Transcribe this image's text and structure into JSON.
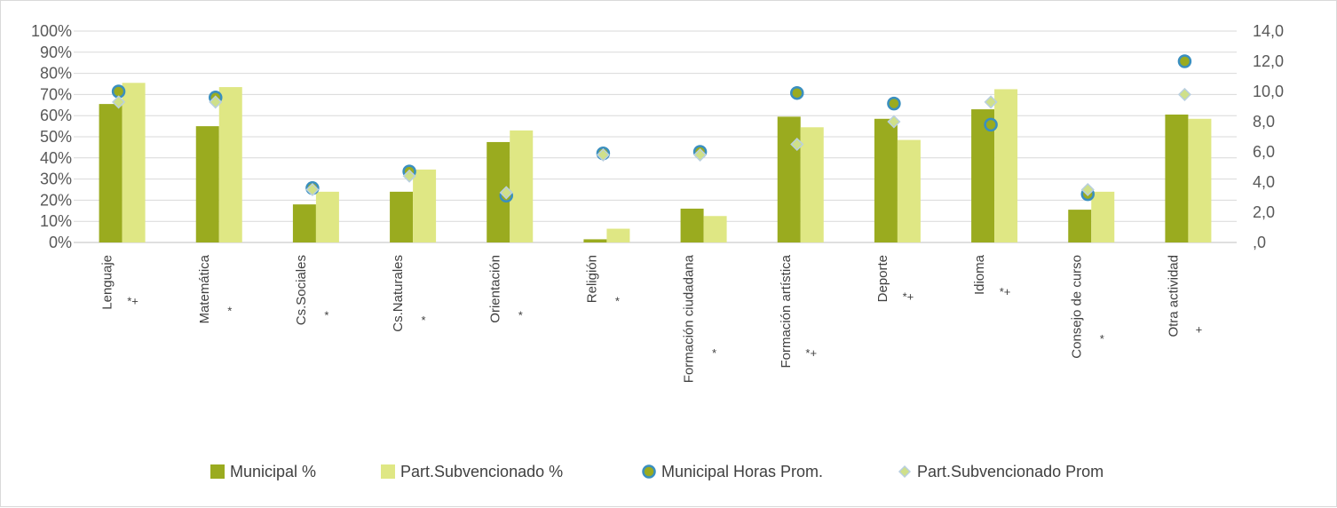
{
  "chart_data": {
    "type": "bar",
    "categories": [
      "Lenguaje",
      "Matemática",
      "Cs.Sociales",
      "Cs.Naturales",
      "Orientación",
      "Religión",
      "Formación ciudadana",
      "Formación artística",
      "Deporte",
      "Idioma",
      "Consejo de curso",
      "Otra actividad"
    ],
    "significance": [
      "*+",
      "*",
      "*",
      "*",
      "*",
      "*",
      "*",
      "*+",
      "*+",
      "*+",
      "*",
      "+"
    ],
    "y_left": {
      "ticks": [
        "0%",
        "10%",
        "20%",
        "30%",
        "40%",
        "50%",
        "60%",
        "70%",
        "80%",
        "90%",
        "100%"
      ],
      "ylim": [
        0,
        100
      ]
    },
    "y_right": {
      "ticks": [
        ",0",
        "2,0",
        "4,0",
        "6,0",
        "8,0",
        "10,0",
        "12,0",
        "14,0"
      ],
      "ylim": [
        0,
        14
      ]
    },
    "series": [
      {
        "name": "Municipal %",
        "kind": "bar",
        "axis": "left",
        "color": "#9aab1f",
        "values": [
          65.5,
          55,
          18,
          24,
          47.5,
          1.5,
          16,
          59.5,
          58.5,
          63,
          15.5,
          60.5
        ]
      },
      {
        "name": "Part.Subvencionado %",
        "kind": "bar",
        "axis": "left",
        "color": "#dfe784",
        "values": [
          75.5,
          73.5,
          24,
          34.5,
          53,
          6.5,
          12.5,
          54.5,
          48.5,
          72.5,
          24,
          58.5
        ]
      },
      {
        "name": "Municipal Horas Prom.",
        "kind": "marker-circle",
        "axis": "right",
        "color": "#9aab1f",
        "edge": "#3a8fbf",
        "values": [
          10.0,
          9.6,
          3.6,
          4.7,
          3.1,
          5.9,
          6.0,
          9.9,
          9.2,
          7.8,
          3.2,
          12.0
        ]
      },
      {
        "name": "Part.Subvencionado Prom",
        "kind": "marker-diamond",
        "axis": "right",
        "color": "#cfe08a",
        "edge": "#b9cfe0",
        "values": [
          9.3,
          9.3,
          3.5,
          4.4,
          3.3,
          5.8,
          5.8,
          6.5,
          8.0,
          9.3,
          3.5,
          9.8
        ]
      }
    ],
    "legend_position": "bottom",
    "grid": true
  }
}
